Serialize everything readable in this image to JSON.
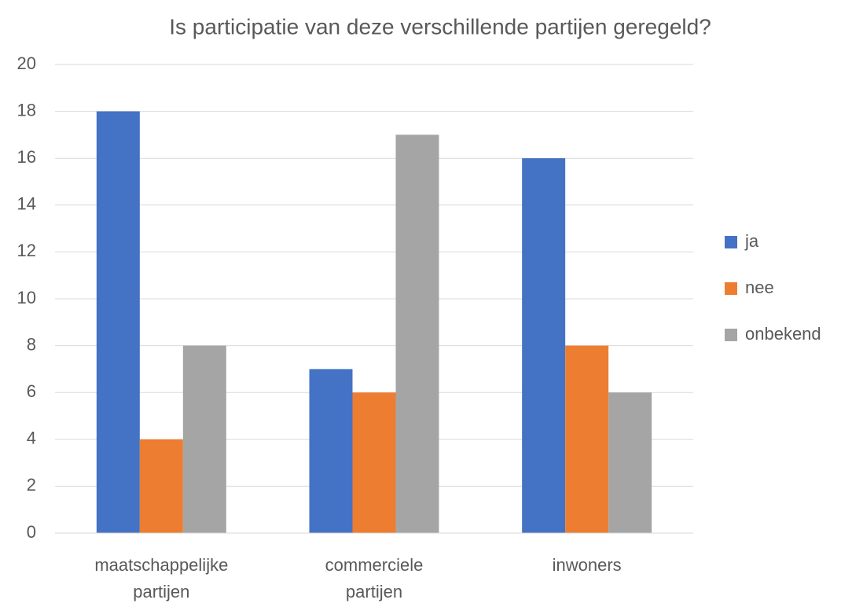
{
  "chart_data": {
    "type": "bar",
    "title": "Is participatie van deze verschillende partijen geregeld?",
    "categories": [
      "maatschappelijke partijen",
      "commerciele partijen",
      "inwoners"
    ],
    "series": [
      {
        "name": "ja",
        "color": "#4472c4",
        "values": [
          18,
          7,
          16
        ]
      },
      {
        "name": "nee",
        "color": "#ed7d31",
        "values": [
          4,
          6,
          8
        ]
      },
      {
        "name": "onbekend",
        "color": "#a5a5a5",
        "values": [
          8,
          17,
          6
        ]
      }
    ],
    "ylim": [
      0,
      20
    ],
    "yticks": [
      0,
      2,
      4,
      6,
      8,
      10,
      12,
      14,
      16,
      18,
      20
    ],
    "grid": true,
    "legend": "right"
  }
}
